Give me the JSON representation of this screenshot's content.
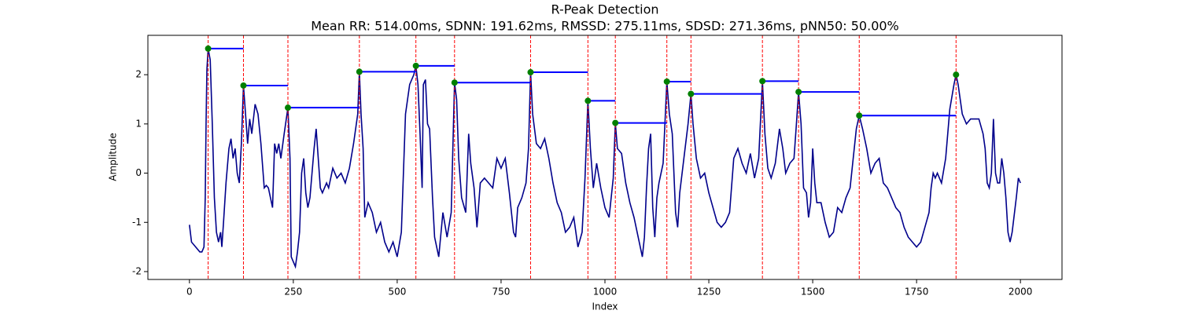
{
  "chart_data": {
    "type": "line",
    "title": "R-Peak Detection",
    "subtitle": "Mean RR: 514.00ms, SDNN: 191.62ms, RMSSD: 275.11ms, SDSD: 271.36ms, pNN50: 50.00%",
    "x_label": "Index",
    "y_label": "Amplitude",
    "xlim": [
      -100,
      2100
    ],
    "ylim": [
      -2.16,
      2.8
    ],
    "xticks": [
      0,
      250,
      500,
      750,
      1000,
      1250,
      1500,
      1750,
      2000
    ],
    "yticks": [
      -2,
      -1,
      0,
      1,
      2
    ],
    "grid": false,
    "signal": {
      "color": "#00008b",
      "x": [
        0,
        5,
        15,
        25,
        30,
        35,
        38,
        40,
        42,
        45,
        50,
        55,
        60,
        65,
        70,
        75,
        78,
        82,
        88,
        95,
        100,
        105,
        110,
        115,
        120,
        125,
        130,
        135,
        140,
        145,
        150,
        158,
        165,
        172,
        180,
        185,
        190,
        200,
        205,
        210,
        215,
        220,
        228,
        237,
        242,
        245,
        250,
        255,
        260,
        265,
        270,
        275,
        280,
        285,
        290,
        300,
        305,
        310,
        315,
        320,
        330,
        335,
        345,
        355,
        365,
        375,
        385,
        395,
        400,
        405,
        409,
        413,
        418,
        422,
        430,
        440,
        450,
        460,
        470,
        480,
        490,
        500,
        510,
        520,
        530,
        540,
        545,
        550,
        555,
        560,
        563,
        568,
        573,
        578,
        585,
        590,
        600,
        610,
        620,
        630,
        638,
        643,
        648,
        655,
        665,
        672,
        677,
        685,
        692,
        700,
        710,
        720,
        730,
        740,
        750,
        760,
        770,
        780,
        785,
        790,
        800,
        810,
        816,
        821,
        826,
        835,
        845,
        855,
        865,
        875,
        885,
        895,
        905,
        915,
        925,
        935,
        945,
        952,
        959,
        965,
        972,
        980,
        990,
        1000,
        1010,
        1020,
        1025,
        1030,
        1040,
        1050,
        1060,
        1070,
        1080,
        1090,
        1095,
        1100,
        1105,
        1110,
        1115,
        1120,
        1125,
        1130,
        1140,
        1149,
        1155,
        1162,
        1170,
        1175,
        1180,
        1190,
        1200,
        1207,
        1212,
        1220,
        1230,
        1240,
        1250,
        1260,
        1270,
        1280,
        1290,
        1300,
        1310,
        1320,
        1330,
        1340,
        1350,
        1360,
        1370,
        1379,
        1385,
        1392,
        1400,
        1410,
        1420,
        1428,
        1435,
        1445,
        1455,
        1460,
        1466,
        1472,
        1478,
        1485,
        1490,
        1495,
        1500,
        1505,
        1510,
        1520,
        1530,
        1540,
        1550,
        1560,
        1570,
        1580,
        1590,
        1600,
        1605,
        1612,
        1620,
        1630,
        1640,
        1650,
        1660,
        1670,
        1680,
        1690,
        1700,
        1710,
        1720,
        1730,
        1740,
        1750,
        1760,
        1770,
        1780,
        1785,
        1790,
        1795,
        1800,
        1810,
        1820,
        1830,
        1840,
        1845,
        1850,
        1860,
        1870,
        1880,
        1890,
        1900,
        1910,
        1915,
        1920,
        1925,
        1930,
        1935,
        1940,
        1945,
        1950,
        1955,
        1960,
        1965,
        1970,
        1975,
        1980,
        1990,
        1995,
        2000
      ],
      "values": [
        -1.05,
        -1.4,
        -1.5,
        -1.6,
        -1.6,
        -1.5,
        -0.5,
        1.0,
        2.1,
        2.53,
        2.3,
        1.0,
        -0.5,
        -1.2,
        -1.4,
        -1.2,
        -1.5,
        -1.0,
        -0.2,
        0.5,
        0.7,
        0.3,
        0.5,
        0.0,
        -0.2,
        0.6,
        1.78,
        1.2,
        0.6,
        1.1,
        0.8,
        1.4,
        1.2,
        0.6,
        -0.3,
        -0.25,
        -0.3,
        -0.7,
        0.6,
        0.4,
        0.6,
        0.3,
        0.8,
        1.33,
        0.3,
        -1.7,
        -1.8,
        -1.9,
        -1.6,
        -1.2,
        0.0,
        0.3,
        -0.4,
        -0.7,
        -0.5,
        0.5,
        0.9,
        0.3,
        -0.3,
        -0.4,
        -0.2,
        -0.3,
        0.1,
        -0.1,
        0.0,
        -0.2,
        0.1,
        0.6,
        0.9,
        1.2,
        2.06,
        1.2,
        0.5,
        -0.9,
        -0.6,
        -0.8,
        -1.2,
        -1.0,
        -1.4,
        -1.6,
        -1.4,
        -1.7,
        -1.2,
        1.2,
        1.8,
        2.0,
        2.18,
        1.8,
        0.8,
        -0.3,
        1.8,
        1.9,
        1.0,
        0.9,
        -0.5,
        -1.3,
        -1.7,
        -0.8,
        -1.3,
        -0.8,
        1.84,
        1.5,
        0.3,
        -0.5,
        -0.8,
        0.8,
        0.2,
        -0.3,
        -1.1,
        -0.2,
        -0.1,
        -0.2,
        -0.3,
        0.3,
        0.1,
        0.3,
        -0.4,
        -1.2,
        -1.3,
        -0.7,
        -0.5,
        -0.2,
        0.5,
        2.05,
        1.2,
        0.6,
        0.5,
        0.7,
        0.3,
        -0.2,
        -0.6,
        -0.8,
        -1.2,
        -1.1,
        -0.9,
        -1.5,
        -1.2,
        -0.1,
        1.47,
        0.5,
        -0.3,
        0.2,
        -0.3,
        -0.7,
        -0.9,
        -0.1,
        1.02,
        0.5,
        0.4,
        -0.2,
        -0.6,
        -0.9,
        -1.3,
        -1.7,
        -1.3,
        -0.3,
        0.5,
        0.8,
        -0.7,
        -1.3,
        -0.5,
        -0.2,
        0.2,
        1.86,
        1.2,
        0.8,
        -0.8,
        -1.1,
        -0.4,
        0.3,
        1.0,
        1.61,
        1.0,
        0.3,
        -0.1,
        0.0,
        -0.4,
        -0.7,
        -1.0,
        -1.1,
        -1.0,
        -0.8,
        0.3,
        0.5,
        0.2,
        0.0,
        0.4,
        -0.1,
        0.3,
        1.87,
        0.8,
        0.1,
        -0.1,
        0.2,
        0.9,
        0.5,
        0.0,
        0.2,
        0.3,
        0.9,
        1.65,
        1.0,
        -0.3,
        -0.4,
        -0.9,
        -0.6,
        0.5,
        -0.2,
        -0.6,
        -0.6,
        -1.0,
        -1.3,
        -1.2,
        -0.7,
        -0.8,
        -0.5,
        -0.3,
        0.5,
        0.9,
        1.17,
        0.9,
        0.5,
        0.0,
        0.2,
        0.3,
        -0.2,
        -0.3,
        -0.5,
        -0.7,
        -0.8,
        -1.1,
        -1.3,
        -1.4,
        -1.5,
        -1.4,
        -1.1,
        -0.8,
        -0.3,
        0.0,
        -0.1,
        0.0,
        -0.2,
        0.3,
        1.3,
        1.8,
        2.0,
        1.8,
        1.2,
        1.0,
        1.1,
        1.1,
        1.1,
        0.8,
        0.5,
        -0.2,
        -0.3,
        0.0,
        1.1,
        0.0,
        -0.2,
        -0.2,
        0.3,
        0.0,
        -0.5,
        -1.2,
        -1.4,
        -1.2,
        -0.5,
        -0.1,
        -0.2
      ]
    },
    "peaks": {
      "color": "green",
      "x": [
        45,
        130,
        237,
        409,
        545,
        638,
        821,
        959,
        1025,
        1149,
        1207,
        1379,
        1466,
        1612,
        1845
      ],
      "values": [
        2.53,
        1.78,
        1.33,
        2.06,
        2.18,
        1.84,
        2.05,
        1.47,
        1.02,
        1.86,
        1.61,
        1.87,
        1.65,
        1.17,
        2.0
      ]
    },
    "peak_line_color": "red",
    "interval_color": "blue"
  }
}
